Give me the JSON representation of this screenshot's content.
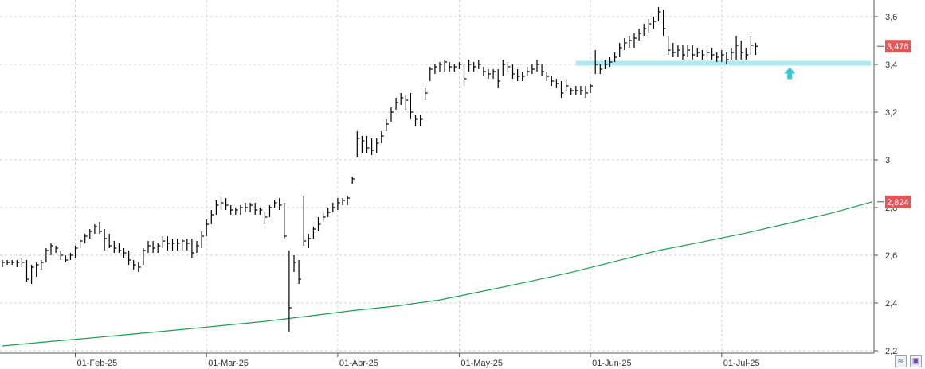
{
  "chart_data": {
    "type": "ohlc",
    "y_ticks": [
      "2,2",
      "2,4",
      "2,6",
      "2,8",
      "3",
      "3,2",
      "3,4",
      "3,6"
    ],
    "y_tick_values": [
      2.2,
      2.4,
      2.6,
      2.8,
      3.0,
      3.2,
      3.4,
      3.6
    ],
    "ylim": [
      2.19,
      3.67
    ],
    "x_ticks": [
      "01-Feb-25",
      "01-Mar-25",
      "01-Abr-25",
      "01-May-25",
      "01-Jun-25",
      "01-Jul-25"
    ],
    "x_tick_bars": [
      15,
      42,
      69,
      94,
      121,
      148
    ],
    "grid": true,
    "price_badge": "3,476",
    "price_value": 3.476,
    "ma_badge": "2,824",
    "ma_value": 2.824,
    "support_level": 3.405,
    "arrow_bar": 162,
    "colors": {
      "bars": "#000000",
      "ma": "#1e9e4e",
      "badge": "#e15757",
      "support": "#aee9ef",
      "arrow": "#3cc8cf",
      "grid": "#cfcfcf"
    },
    "bars": [
      [
        2.58,
        2.55,
        2.57
      ],
      [
        2.58,
        2.56,
        2.57
      ],
      [
        2.58,
        2.56,
        2.57
      ],
      [
        2.58,
        2.55,
        2.57
      ],
      [
        2.59,
        2.55,
        2.57
      ],
      [
        2.58,
        2.49,
        2.5
      ],
      [
        2.56,
        2.48,
        2.55
      ],
      [
        2.57,
        2.51,
        2.56
      ],
      [
        2.58,
        2.54,
        2.57
      ],
      [
        2.63,
        2.57,
        2.62
      ],
      [
        2.65,
        2.6,
        2.64
      ],
      [
        2.64,
        2.61,
        2.63
      ],
      [
        2.62,
        2.58,
        2.6
      ],
      [
        2.6,
        2.57,
        2.58
      ],
      [
        2.61,
        2.58,
        2.6
      ],
      [
        2.64,
        2.59,
        2.63
      ],
      [
        2.67,
        2.63,
        2.66
      ],
      [
        2.69,
        2.65,
        2.68
      ],
      [
        2.71,
        2.67,
        2.7
      ],
      [
        2.73,
        2.69,
        2.72
      ],
      [
        2.74,
        2.69,
        2.7
      ],
      [
        2.71,
        2.62,
        2.67
      ],
      [
        2.69,
        2.63,
        2.64
      ],
      [
        2.66,
        2.61,
        2.63
      ],
      [
        2.65,
        2.61,
        2.62
      ],
      [
        2.63,
        2.59,
        2.61
      ],
      [
        2.62,
        2.56,
        2.58
      ],
      [
        2.58,
        2.54,
        2.56
      ],
      [
        2.57,
        2.53,
        2.55
      ],
      [
        2.63,
        2.56,
        2.62
      ],
      [
        2.66,
        2.61,
        2.64
      ],
      [
        2.66,
        2.61,
        2.63
      ],
      [
        2.65,
        2.61,
        2.64
      ],
      [
        2.68,
        2.63,
        2.66
      ],
      [
        2.68,
        2.62,
        2.65
      ],
      [
        2.67,
        2.62,
        2.65
      ],
      [
        2.67,
        2.62,
        2.65
      ],
      [
        2.67,
        2.62,
        2.66
      ],
      [
        2.67,
        2.62,
        2.65
      ],
      [
        2.67,
        2.59,
        2.61
      ],
      [
        2.66,
        2.61,
        2.64
      ],
      [
        2.7,
        2.63,
        2.68
      ],
      [
        2.75,
        2.68,
        2.73
      ],
      [
        2.79,
        2.73,
        2.77
      ],
      [
        2.83,
        2.77,
        2.81
      ],
      [
        2.85,
        2.79,
        2.82
      ],
      [
        2.84,
        2.79,
        2.81
      ],
      [
        2.81,
        2.77,
        2.79
      ],
      [
        2.8,
        2.77,
        2.79
      ],
      [
        2.81,
        2.77,
        2.8
      ],
      [
        2.82,
        2.78,
        2.8
      ],
      [
        2.82,
        2.78,
        2.81
      ],
      [
        2.82,
        2.77,
        2.79
      ],
      [
        2.8,
        2.77,
        2.79
      ],
      [
        2.78,
        2.73,
        2.76
      ],
      [
        2.81,
        2.76,
        2.8
      ],
      [
        2.83,
        2.8,
        2.82
      ],
      [
        2.84,
        2.79,
        2.81
      ],
      [
        2.82,
        2.67,
        2.68
      ],
      [
        2.62,
        2.28,
        2.38
      ],
      [
        2.6,
        2.53,
        2.57
      ],
      [
        2.58,
        2.48,
        2.5
      ],
      [
        2.85,
        2.64,
        2.66
      ],
      [
        2.69,
        2.63,
        2.67
      ],
      [
        2.72,
        2.67,
        2.71
      ],
      [
        2.76,
        2.7,
        2.73
      ],
      [
        2.78,
        2.74,
        2.76
      ],
      [
        2.8,
        2.76,
        2.78
      ],
      [
        2.82,
        2.78,
        2.8
      ],
      [
        2.84,
        2.79,
        2.82
      ],
      [
        2.84,
        2.81,
        2.83
      ],
      [
        2.85,
        2.81,
        2.84
      ],
      [
        2.93,
        2.9,
        2.92
      ],
      [
        3.12,
        3.01,
        3.09
      ],
      [
        3.1,
        3.03,
        3.08
      ],
      [
        3.1,
        3.03,
        3.05
      ],
      [
        3.09,
        3.02,
        3.04
      ],
      [
        3.09,
        3.03,
        3.07
      ],
      [
        3.12,
        3.07,
        3.1
      ],
      [
        3.17,
        3.12,
        3.15
      ],
      [
        3.22,
        3.16,
        3.2
      ],
      [
        3.26,
        3.21,
        3.24
      ],
      [
        3.28,
        3.23,
        3.26
      ],
      [
        3.27,
        3.21,
        3.25
      ],
      [
        3.28,
        3.17,
        3.2
      ],
      [
        3.19,
        3.14,
        3.17
      ],
      [
        3.19,
        3.14,
        3.17
      ],
      [
        3.3,
        3.25,
        3.28
      ],
      [
        3.39,
        3.33,
        3.38
      ],
      [
        3.4,
        3.36,
        3.39
      ],
      [
        3.41,
        3.37,
        3.4
      ],
      [
        3.42,
        3.37,
        3.41
      ],
      [
        3.41,
        3.37,
        3.39
      ],
      [
        3.4,
        3.37,
        3.39
      ],
      [
        3.41,
        3.38,
        3.4
      ],
      [
        3.4,
        3.31,
        3.34
      ],
      [
        3.42,
        3.37,
        3.4
      ],
      [
        3.41,
        3.37,
        3.39
      ],
      [
        3.42,
        3.38,
        3.4
      ],
      [
        3.39,
        3.35,
        3.37
      ],
      [
        3.38,
        3.34,
        3.36
      ],
      [
        3.38,
        3.34,
        3.37
      ],
      [
        3.38,
        3.3,
        3.33
      ],
      [
        3.42,
        3.35,
        3.4
      ],
      [
        3.41,
        3.37,
        3.39
      ],
      [
        3.4,
        3.34,
        3.36
      ],
      [
        3.38,
        3.33,
        3.35
      ],
      [
        3.37,
        3.33,
        3.35
      ],
      [
        3.39,
        3.35,
        3.37
      ],
      [
        3.4,
        3.36,
        3.38
      ],
      [
        3.42,
        3.37,
        3.4
      ],
      [
        3.4,
        3.35,
        3.37
      ],
      [
        3.37,
        3.33,
        3.35
      ],
      [
        3.35,
        3.31,
        3.33
      ],
      [
        3.34,
        3.3,
        3.32
      ],
      [
        3.33,
        3.26,
        3.28
      ],
      [
        3.34,
        3.29,
        3.31
      ],
      [
        3.3,
        3.27,
        3.29
      ],
      [
        3.31,
        3.27,
        3.29
      ],
      [
        3.31,
        3.27,
        3.29
      ],
      [
        3.31,
        3.26,
        3.28
      ],
      [
        3.32,
        3.28,
        3.31
      ],
      [
        3.46,
        3.36,
        3.4
      ],
      [
        3.4,
        3.36,
        3.38
      ],
      [
        3.42,
        3.38,
        3.4
      ],
      [
        3.43,
        3.39,
        3.41
      ],
      [
        3.45,
        3.41,
        3.43
      ],
      [
        3.49,
        3.43,
        3.47
      ],
      [
        3.51,
        3.46,
        3.49
      ],
      [
        3.52,
        3.47,
        3.5
      ],
      [
        3.53,
        3.47,
        3.51
      ],
      [
        3.55,
        3.5,
        3.53
      ],
      [
        3.57,
        3.52,
        3.55
      ],
      [
        3.59,
        3.53,
        3.57
      ],
      [
        3.6,
        3.55,
        3.58
      ],
      [
        3.64,
        3.58,
        3.62
      ],
      [
        3.63,
        3.52,
        3.55
      ],
      [
        3.52,
        3.44,
        3.46
      ],
      [
        3.49,
        3.43,
        3.45
      ],
      [
        3.48,
        3.43,
        3.46
      ],
      [
        3.48,
        3.42,
        3.44
      ],
      [
        3.48,
        3.43,
        3.46
      ],
      [
        3.48,
        3.42,
        3.44
      ],
      [
        3.47,
        3.43,
        3.45
      ],
      [
        3.46,
        3.42,
        3.44
      ],
      [
        3.46,
        3.43,
        3.45
      ],
      [
        3.47,
        3.42,
        3.44
      ],
      [
        3.45,
        3.41,
        3.43
      ],
      [
        3.46,
        3.41,
        3.44
      ],
      [
        3.45,
        3.4,
        3.42
      ],
      [
        3.47,
        3.42,
        3.45
      ],
      [
        3.52,
        3.42,
        3.48
      ],
      [
        3.5,
        3.42,
        3.45
      ],
      [
        3.47,
        3.42,
        3.44
      ],
      [
        3.52,
        3.44,
        3.48
      ],
      [
        3.49,
        3.44,
        3.476
      ]
    ],
    "ma_series": [
      [
        0,
        2.22
      ],
      [
        9,
        2.237
      ],
      [
        18,
        2.253
      ],
      [
        27,
        2.27
      ],
      [
        36,
        2.287
      ],
      [
        45,
        2.305
      ],
      [
        54,
        2.323
      ],
      [
        63,
        2.345
      ],
      [
        72,
        2.368
      ],
      [
        81,
        2.387
      ],
      [
        90,
        2.413
      ],
      [
        99,
        2.45
      ],
      [
        108,
        2.488
      ],
      [
        117,
        2.528
      ],
      [
        126,
        2.574
      ],
      [
        135,
        2.62
      ],
      [
        144,
        2.656
      ],
      [
        153,
        2.693
      ],
      [
        162,
        2.735
      ],
      [
        171,
        2.779
      ],
      [
        179,
        2.824
      ]
    ]
  }
}
